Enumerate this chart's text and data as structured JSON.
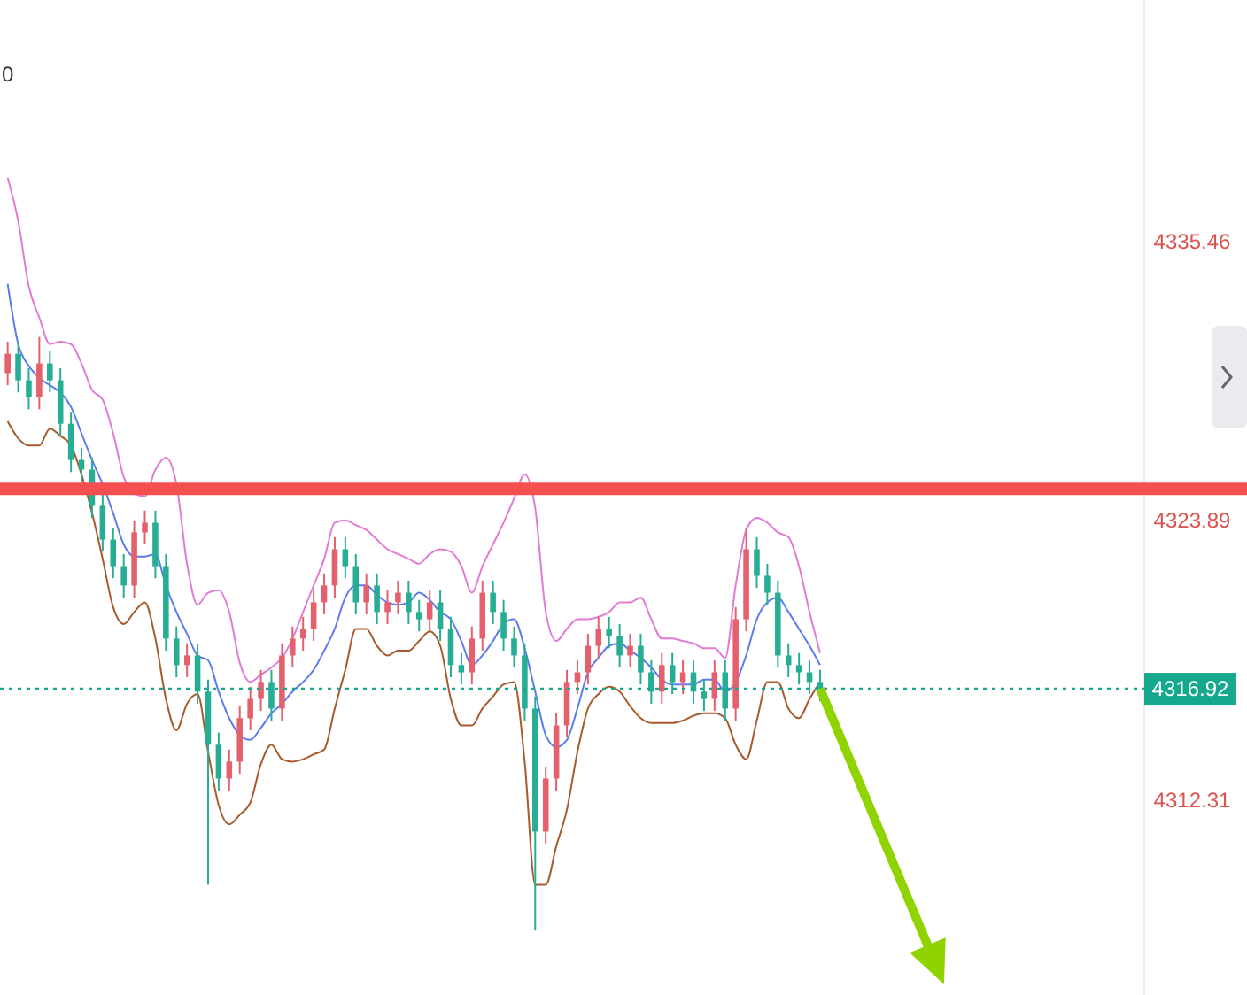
{
  "chart_data": {
    "type": "candlestick",
    "categories": [
      null,
      null,
      null,
      null,
      null,
      null,
      null,
      null,
      null,
      null,
      null,
      null,
      null,
      null,
      null,
      null,
      null,
      null,
      null,
      null,
      null,
      null,
      null,
      null,
      null,
      null,
      null,
      null,
      null,
      null,
      null,
      null,
      null,
      null,
      null,
      null,
      null,
      null,
      null,
      null,
      null,
      null,
      null,
      null,
      null,
      null,
      null,
      null,
      null,
      null,
      null,
      null,
      null,
      null,
      null,
      null,
      null,
      null,
      null,
      null,
      null,
      null,
      null,
      null,
      null,
      null,
      null,
      null,
      null,
      null,
      null,
      null,
      null,
      null,
      null,
      null,
      null,
      null,
      null,
      null,
      null,
      null,
      null,
      null,
      null,
      null,
      null,
      null,
      null,
      null,
      null,
      null,
      null,
      null,
      null,
      null,
      null,
      null,
      null,
      null,
      null,
      null,
      null,
      null,
      null,
      null,
      null,
      null
    ],
    "ohlc": [
      [
        4330.0,
        4331.3,
        4329.5,
        4330.8
      ],
      [
        4330.8,
        4331.3,
        4329.2,
        4329.7
      ],
      [
        4329.7,
        4330.2,
        4328.5,
        4329.0
      ],
      [
        4329.0,
        4331.5,
        4328.5,
        4330.4
      ],
      [
        4330.4,
        4330.9,
        4329.2,
        4329.7
      ],
      [
        4329.7,
        4330.2,
        4327.4,
        4327.9
      ],
      [
        4327.9,
        4328.4,
        4325.9,
        4326.4
      ],
      [
        4326.4,
        4326.9,
        4325.5,
        4326.0
      ],
      [
        4326.0,
        4326.5,
        4324.0,
        4324.5
      ],
      [
        4324.5,
        4325.0,
        4322.6,
        4323.1
      ],
      [
        4323.1,
        4323.6,
        4321.5,
        4322.0
      ],
      [
        4322.0,
        4322.5,
        4320.7,
        4321.2
      ],
      [
        4321.2,
        4323.9,
        4320.7,
        4323.4
      ],
      [
        4323.4,
        4324.3,
        4322.9,
        4323.8
      ],
      [
        4323.8,
        4324.3,
        4321.5,
        4322.0
      ],
      [
        4322.0,
        4322.5,
        4318.5,
        4319.0
      ],
      [
        4319.0,
        4319.5,
        4317.4,
        4317.9
      ],
      [
        4317.9,
        4318.8,
        4317.4,
        4318.3
      ],
      [
        4318.3,
        4318.8,
        4316.3,
        4316.8
      ],
      [
        4316.8,
        4317.3,
        4308.8,
        4314.6
      ],
      [
        4314.6,
        4315.1,
        4312.7,
        4313.2
      ],
      [
        4313.2,
        4314.4,
        4312.7,
        4313.9
      ],
      [
        4313.9,
        4316.2,
        4313.4,
        4315.7
      ],
      [
        4315.7,
        4317.0,
        4315.2,
        4316.5
      ],
      [
        4316.5,
        4317.7,
        4316.0,
        4317.2
      ],
      [
        4317.2,
        4317.7,
        4315.6,
        4316.1
      ],
      [
        4316.1,
        4318.8,
        4315.6,
        4318.3
      ],
      [
        4318.3,
        4319.5,
        4317.8,
        4319.0
      ],
      [
        4319.0,
        4319.9,
        4318.5,
        4319.4
      ],
      [
        4319.4,
        4321.0,
        4318.9,
        4320.5
      ],
      [
        4320.5,
        4321.7,
        4320.0,
        4321.2
      ],
      [
        4321.2,
        4323.2,
        4320.7,
        4322.7
      ],
      [
        4322.7,
        4323.2,
        4321.5,
        4322.0
      ],
      [
        4322.0,
        4322.5,
        4320.0,
        4320.5
      ],
      [
        4320.5,
        4321.7,
        4320.0,
        4321.2
      ],
      [
        4321.2,
        4321.7,
        4319.6,
        4320.1
      ],
      [
        4320.1,
        4321.0,
        4319.6,
        4320.5
      ],
      [
        4320.5,
        4321.4,
        4320.0,
        4320.9
      ],
      [
        4320.9,
        4321.4,
        4319.6,
        4320.1
      ],
      [
        4320.1,
        4320.6,
        4319.3,
        4319.8
      ],
      [
        4319.8,
        4321.0,
        4319.3,
        4320.5
      ],
      [
        4320.5,
        4321.0,
        4318.9,
        4319.4
      ],
      [
        4319.4,
        4319.9,
        4317.4,
        4317.9
      ],
      [
        4317.9,
        4318.4,
        4317.1,
        4317.6
      ],
      [
        4317.6,
        4319.5,
        4317.1,
        4319.0
      ],
      [
        4319.0,
        4321.4,
        4318.5,
        4320.9
      ],
      [
        4320.9,
        4321.4,
        4319.6,
        4320.1
      ],
      [
        4320.1,
        4320.6,
        4318.5,
        4319.0
      ],
      [
        4319.0,
        4319.5,
        4317.8,
        4318.3
      ],
      [
        4318.3,
        4318.8,
        4315.6,
        4316.1
      ],
      [
        4316.1,
        4316.6,
        4306.9,
        4311.0
      ],
      [
        4311.0,
        4313.7,
        4310.5,
        4313.2
      ],
      [
        4313.2,
        4315.9,
        4312.7,
        4315.4
      ],
      [
        4315.4,
        4317.7,
        4314.9,
        4317.2
      ],
      [
        4317.2,
        4318.1,
        4316.7,
        4317.6
      ],
      [
        4317.6,
        4319.2,
        4317.1,
        4318.7
      ],
      [
        4318.7,
        4319.9,
        4318.2,
        4319.4
      ],
      [
        4319.4,
        4319.9,
        4318.6,
        4319.1
      ],
      [
        4319.1,
        4319.6,
        4317.8,
        4318.3
      ],
      [
        4318.3,
        4319.2,
        4317.8,
        4318.7
      ],
      [
        4318.7,
        4319.2,
        4317.1,
        4317.6
      ],
      [
        4317.6,
        4318.1,
        4316.3,
        4316.8
      ],
      [
        4316.8,
        4318.4,
        4316.3,
        4317.9
      ],
      [
        4317.9,
        4318.4,
        4316.7,
        4317.2
      ],
      [
        4317.2,
        4318.1,
        4316.7,
        4317.6
      ],
      [
        4317.6,
        4318.1,
        4316.3,
        4316.8
      ],
      [
        4316.8,
        4317.3,
        4316.0,
        4316.5
      ],
      [
        4316.5,
        4318.1,
        4316.0,
        4317.6
      ],
      [
        4317.6,
        4318.1,
        4315.6,
        4316.1
      ],
      [
        4316.1,
        4320.3,
        4315.6,
        4319.8
      ],
      [
        4319.8,
        4323.6,
        4319.3,
        4322.7
      ],
      [
        4322.7,
        4323.2,
        4321.1,
        4321.6
      ],
      [
        4321.6,
        4322.1,
        4320.4,
        4320.9
      ],
      [
        4320.9,
        4321.4,
        4317.8,
        4318.3
      ],
      [
        4318.3,
        4318.8,
        4317.4,
        4317.9
      ],
      [
        4317.9,
        4318.4,
        4317.1,
        4317.6
      ],
      [
        4317.6,
        4318.1,
        4316.7,
        4317.2
      ],
      [
        4317.2,
        4317.7,
        4316.4,
        4316.92
      ],
      null,
      null,
      null,
      null,
      null,
      null,
      null,
      null,
      null,
      null,
      null,
      null,
      null,
      null,
      null,
      null,
      null,
      null,
      null,
      null,
      null,
      null,
      null,
      null,
      null,
      null,
      null,
      null,
      null,
      null
    ],
    "colors": [
      "#e4606c",
      "#26ad94",
      "#26ad94",
      "#e4606c",
      "#26ad94",
      "#26ad94",
      "#26ad94",
      "#26ad94",
      "#26ad94",
      "#26ad94",
      "#26ad94",
      "#26ad94",
      "#e4606c",
      "#e4606c",
      "#26ad94",
      "#26ad94",
      "#26ad94",
      "#e4606c",
      "#26ad94",
      "#26ad94",
      "#26ad94",
      "#e4606c",
      "#e4606c",
      "#e4606c",
      "#e4606c",
      "#26ad94",
      "#e4606c",
      "#e4606c",
      "#e4606c",
      "#e4606c",
      "#e4606c",
      "#e4606c",
      "#26ad94",
      "#26ad94",
      "#e4606c",
      "#26ad94",
      "#e4606c",
      "#e4606c",
      "#26ad94",
      "#26ad94",
      "#e4606c",
      "#26ad94",
      "#26ad94",
      "#26ad94",
      "#e4606c",
      "#e4606c",
      "#26ad94",
      "#26ad94",
      "#26ad94",
      "#26ad94",
      "#26ad94",
      "#e4606c",
      "#e4606c",
      "#e4606c",
      "#e4606c",
      "#e4606c",
      "#e4606c",
      "#26ad94",
      "#26ad94",
      "#e4606c",
      "#26ad94",
      "#26ad94",
      "#e4606c",
      "#26ad94",
      "#e4606c",
      "#26ad94",
      "#26ad94",
      "#e4606c",
      "#26ad94",
      "#e4606c",
      "#e4606c",
      "#26ad94",
      "#26ad94",
      "#26ad94",
      "#26ad94",
      "#26ad94",
      "#26ad94",
      "#26ad94",
      null,
      null,
      null,
      null,
      null,
      null,
      null,
      null,
      null,
      null,
      null,
      null,
      null,
      null,
      null,
      null,
      null,
      null,
      null,
      null,
      null,
      null,
      null,
      null,
      null,
      null,
      null,
      null,
      null,
      null
    ],
    "series": [
      {
        "type": "line",
        "color": "#e27ad6",
        "values": [
          4338.1,
          4336.3,
          4333.6,
          4332.3,
          4331.2,
          4331.3,
          4331.2,
          4330.4,
          4329.3,
          4328.9,
          4327.5,
          4325.7,
          4325.0,
          4324.9,
          4326.0,
          4326.5,
          4325.4,
          4322.1,
          4320.4,
          4320.9,
          4321.0,
          4320.1,
          4318.0,
          4317.2,
          4317.5,
          4317.8,
          4318.2,
          4319.0,
          4320.1,
          4321.2,
          4322.3,
          4323.8,
          4323.9,
          4323.7,
          4323.5,
          4323.1,
          4322.7,
          4322.5,
          4322.3,
          4322.1,
          4322.5,
          4322.7,
          4322.6,
          4322.0,
          4320.9,
          4322.0,
          4322.9,
          4323.8,
          4324.8,
          4325.8,
          4324.4,
          4320.1,
          4318.9,
          4319.4,
          4319.8,
          4319.8,
          4319.9,
          4320.1,
          4320.5,
          4320.5,
          4320.7,
          4319.8,
          4319.0,
          4319.0,
          4318.9,
          4318.8,
          4318.6,
          4318.6,
          4318.2,
          4321.2,
          4323.5,
          4324.0,
          4323.8,
          4323.4,
          4323.2,
          4322.0,
          4320.1,
          4318.4,
          null,
          null,
          null,
          null,
          null,
          null,
          null,
          null,
          null,
          null,
          null,
          null,
          null,
          null,
          null,
          null,
          null,
          null,
          null,
          null,
          null,
          null,
          null,
          null,
          null,
          null,
          null,
          null,
          null,
          null
        ]
      },
      {
        "type": "line",
        "color": "#5a7cf0",
        "values": [
          4333.7,
          4331.2,
          4330.3,
          4329.8,
          4329.5,
          4329.2,
          4328.6,
          4327.5,
          4326.4,
          4325.4,
          4324.2,
          4322.9,
          4322.4,
          4322.4,
          4322.5,
          4321.2,
          4320.1,
          4319.2,
          4318.3,
          4318.1,
          4316.8,
          4315.7,
          4315.0,
          4314.8,
          4315.3,
          4315.9,
          4316.3,
          4316.8,
          4317.2,
          4317.7,
          4318.5,
          4319.4,
          4320.7,
          4321.2,
          4321.2,
          4320.8,
          4320.5,
          4320.4,
          4320.5,
          4320.9,
          4320.6,
          4320.1,
          4319.8,
          4318.9,
          4317.9,
          4318.3,
          4318.9,
          4319.6,
          4319.8,
          4318.6,
          4316.8,
          4315.0,
          4314.5,
          4314.8,
          4316.1,
          4317.6,
          4318.2,
          4318.7,
          4318.8,
          4318.5,
          4318.2,
          4317.8,
          4317.3,
          4317.1,
          4317.1,
          4317.1,
          4317.3,
          4317.3,
          4316.8,
          4317.2,
          4318.3,
          4319.8,
          4320.5,
          4320.7,
          4320.1,
          4319.4,
          4318.7,
          4317.9,
          null,
          null,
          null,
          null,
          null,
          null,
          null,
          null,
          null,
          null,
          null,
          null,
          null,
          null,
          null,
          null,
          null,
          null,
          null,
          null,
          null,
          null,
          null,
          null,
          null,
          null,
          null,
          null,
          null,
          null
        ]
      },
      {
        "type": "line",
        "color": "#a85a2c",
        "values": [
          4328.0,
          4327.3,
          4327.0,
          4327.0,
          4327.7,
          4327.4,
          4327.0,
          4325.8,
          4324.2,
          4322.3,
          4320.3,
          4319.6,
          4320.1,
          4320.5,
          4319.0,
          4316.5,
          4315.2,
          4316.3,
          4316.7,
          4314.3,
          4312.1,
          4311.3,
          4311.7,
          4312.2,
          4313.8,
          4314.6,
          4314.0,
          4313.9,
          4314.0,
          4314.2,
          4314.4,
          4316.1,
          4317.7,
          4319.4,
          4319.4,
          4318.7,
          4318.3,
          4318.5,
          4318.5,
          4318.9,
          4319.3,
          4318.7,
          4316.5,
          4315.4,
          4315.4,
          4316.1,
          4316.6,
          4317.1,
          4317.2,
          4313.9,
          4308.8,
          4308.8,
          4310.4,
          4311.9,
          4314.3,
          4316.1,
          4316.7,
          4317.0,
          4316.8,
          4316.2,
          4315.7,
          4315.5,
          4315.5,
          4315.5,
          4315.6,
          4315.8,
          4315.9,
          4315.9,
          4315.7,
          4314.6,
          4314.0,
          4315.6,
          4317.2,
          4317.2,
          4316.1,
          4315.7,
          4316.5,
          4317.2,
          null,
          null,
          null,
          null,
          null,
          null,
          null,
          null,
          null,
          null,
          null,
          null,
          null,
          null,
          null,
          null,
          null,
          null,
          null,
          null,
          null,
          null,
          null,
          null,
          null,
          null,
          null,
          null,
          null,
          null
        ]
      }
    ],
    "ylim": [
      4304.23,
      4345.46
    ],
    "yticks": [
      4335.46,
      4323.89,
      4312.31
    ],
    "ref_lines": [
      {
        "axis": "y",
        "value": 4325.2,
        "color": "#f54f4f",
        "line_style": "solid"
      },
      {
        "axis": "y",
        "value": 4316.92,
        "label": "4316.92",
        "color": "#16a88c",
        "line_style": "dotted"
      }
    ],
    "annotations": [
      "0"
    ]
  }
}
